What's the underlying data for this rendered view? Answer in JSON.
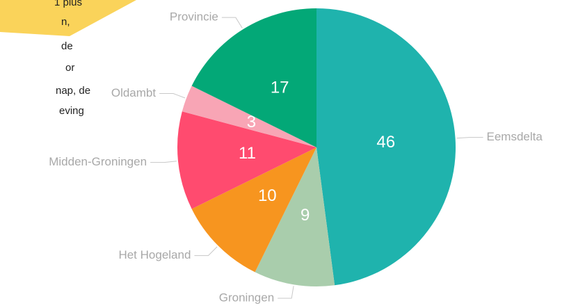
{
  "chart_data": {
    "type": "pie",
    "categories": [
      "Eemsdelta",
      "Groningen",
      "Het Hogeland",
      "Midden-Groningen",
      "Oldambt",
      "Provincie"
    ],
    "values": [
      46,
      9,
      10,
      11,
      3,
      17
    ],
    "colors": [
      "#1fb3ad",
      "#a9cdac",
      "#f7951f",
      "#ff4b6f",
      "#f8a5b5",
      "#03a877"
    ]
  },
  "annotation": {
    "lines": [
      "1 plus",
      "n,",
      "de",
      "or",
      "nap, de",
      "eving"
    ]
  }
}
